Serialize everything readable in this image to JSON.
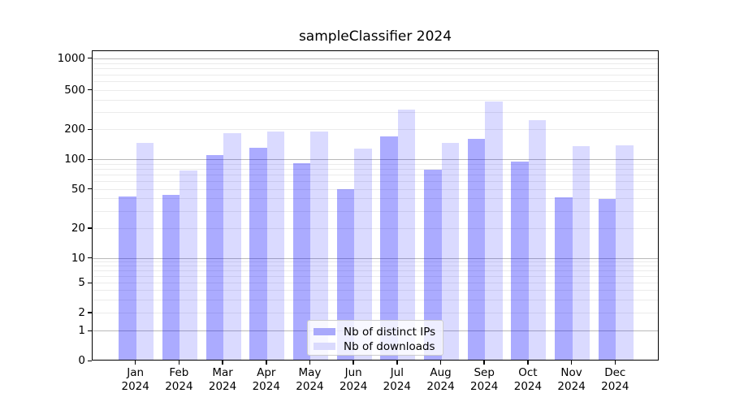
{
  "title": "sampleClassifier 2024",
  "background_color": "#ffffff",
  "chart_data": {
    "type": "bar",
    "title": "sampleClassifier 2024",
    "xlabel": "",
    "ylabel": "",
    "yscale": "symlog",
    "ylim": [
      0,
      1200
    ],
    "grid": "on",
    "legend_position": "bottom-center-inside",
    "year": "2024",
    "categories": [
      "Jan",
      "Feb",
      "Mar",
      "Apr",
      "May",
      "Jun",
      "Jul",
      "Aug",
      "Sep",
      "Oct",
      "Nov",
      "Dec"
    ],
    "y_ticks": [
      0,
      1,
      2,
      5,
      10,
      20,
      50,
      100,
      200,
      500,
      1000
    ],
    "major_grid_values": [
      1,
      10,
      100,
      1000
    ],
    "series": [
      {
        "name": "Nb of distinct IPs",
        "color": "rgba(0,0,255,0.33)",
        "swatch_color": "#a9a9fb",
        "values": [
          43,
          44,
          113,
          134,
          94,
          51,
          173,
          80,
          164,
          97,
          42,
          40
        ]
      },
      {
        "name": "Nb of downloads",
        "color": "rgba(0,0,255,0.145)",
        "swatch_color": "#dadafd",
        "values": [
          150,
          78,
          186,
          195,
          195,
          131,
          320,
          149,
          390,
          252,
          139,
          142
        ]
      }
    ]
  }
}
